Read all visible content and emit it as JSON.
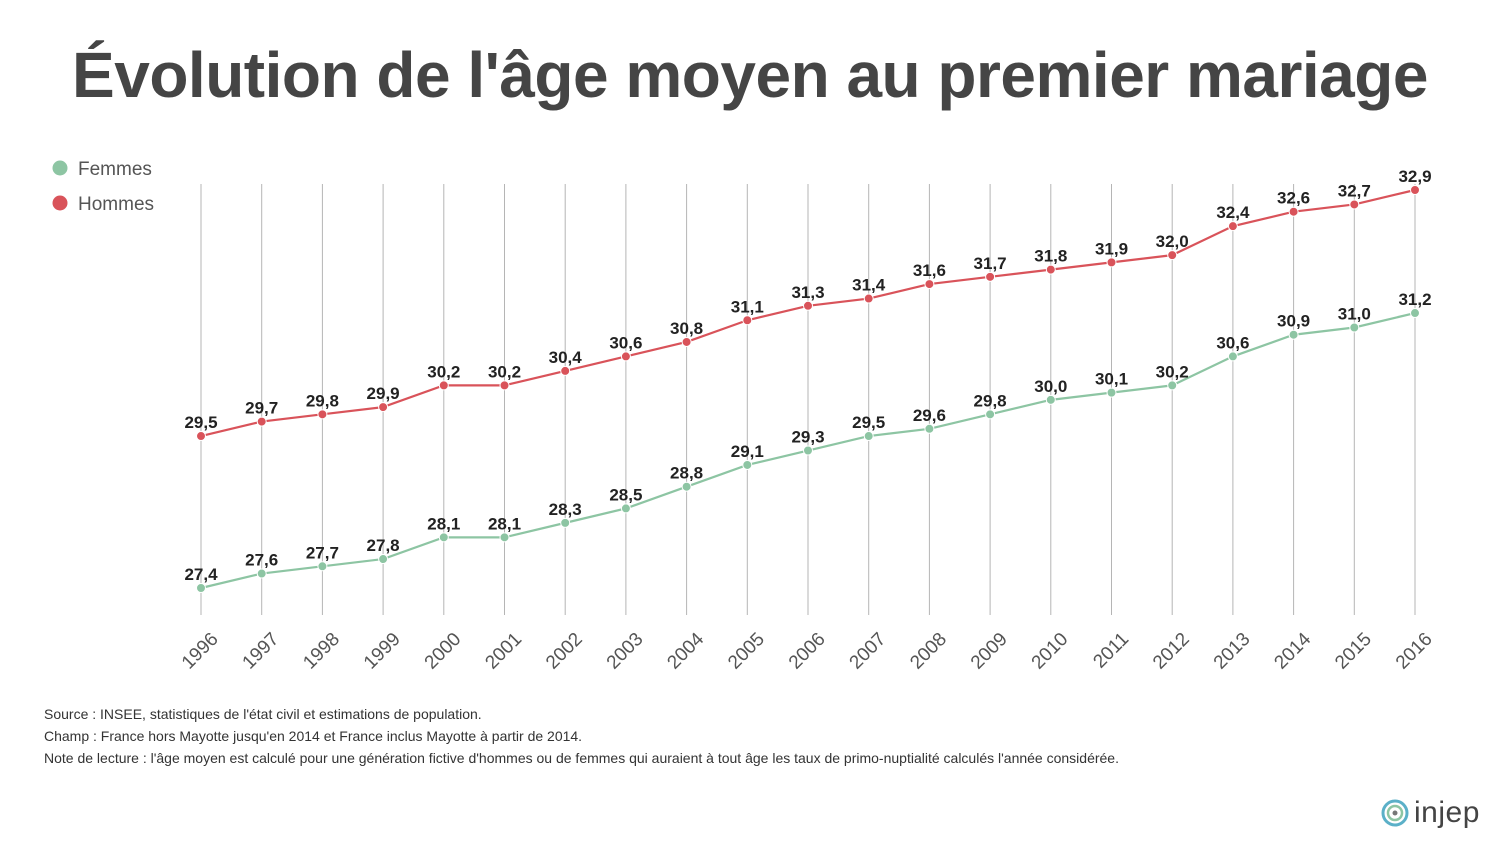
{
  "title": "Évolution de l'âge moyen au premier mariage",
  "notes": {
    "source": "Source : INSEE, statistiques de l'état civil et estimations de population.",
    "champ": "Champ : France hors Mayotte jusqu'en 2014 et France inclus Mayotte à partir de 2014.",
    "lecture": "Note de lecture : l'âge moyen est calculé pour une génération fictive d'hommes ou de femmes qui auraient à tout âge les taux de primo-nuptialité calculés l'année considérée."
  },
  "logo": {
    "text": "injep",
    "icon": "injep-spiral-icon"
  },
  "colors": {
    "femmes": "#8dc5a3",
    "hommes": "#d9535a",
    "grid": "#b5b5b5",
    "text": "#222222",
    "axis_text": "#555555"
  },
  "chart_data": {
    "type": "line",
    "title": "Évolution de l'âge moyen au premier mariage",
    "xlabel": "",
    "ylabel": "",
    "legend_position": "top-left",
    "grid": "vertical",
    "x": [
      "1996",
      "1997",
      "1998",
      "1999",
      "2000",
      "2001",
      "2002",
      "2003",
      "2004",
      "2005",
      "2006",
      "2007",
      "2008",
      "2009",
      "2010",
      "2011",
      "2012",
      "2013",
      "2014",
      "2015",
      "2016"
    ],
    "ylim": [
      27.4,
      32.9
    ],
    "series": [
      {
        "name": "Femmes",
        "color": "#8dc5a3",
        "values": [
          27.4,
          27.6,
          27.7,
          27.8,
          28.1,
          28.1,
          28.3,
          28.5,
          28.8,
          29.1,
          29.3,
          29.5,
          29.6,
          29.8,
          30.0,
          30.1,
          30.2,
          30.6,
          30.9,
          31.0,
          31.2
        ],
        "labels": [
          "27,4",
          "27,6",
          "27,7",
          "27,8",
          "28,1",
          "28,1",
          "28,3",
          "28,5",
          "28,8",
          "29,1",
          "29,3",
          "29,5",
          "29,6",
          "29,8",
          "30,0",
          "30,1",
          "30,2",
          "30,6",
          "30,9",
          "31,0",
          "31,2"
        ]
      },
      {
        "name": "Hommes",
        "color": "#d9535a",
        "values": [
          29.5,
          29.7,
          29.8,
          29.9,
          30.2,
          30.2,
          30.4,
          30.6,
          30.8,
          31.1,
          31.3,
          31.4,
          31.6,
          31.7,
          31.8,
          31.9,
          32.0,
          32.4,
          32.6,
          32.7,
          32.9
        ],
        "labels": [
          "29,5",
          "29,7",
          "29,8",
          "29,9",
          "30,2",
          "30,2",
          "30,4",
          "30,6",
          "30,8",
          "31,1",
          "31,3",
          "31,4",
          "31,6",
          "31,7",
          "31,8",
          "31,9",
          "32,0",
          "32,4",
          "32,6",
          "32,7",
          "32,9"
        ]
      }
    ]
  }
}
